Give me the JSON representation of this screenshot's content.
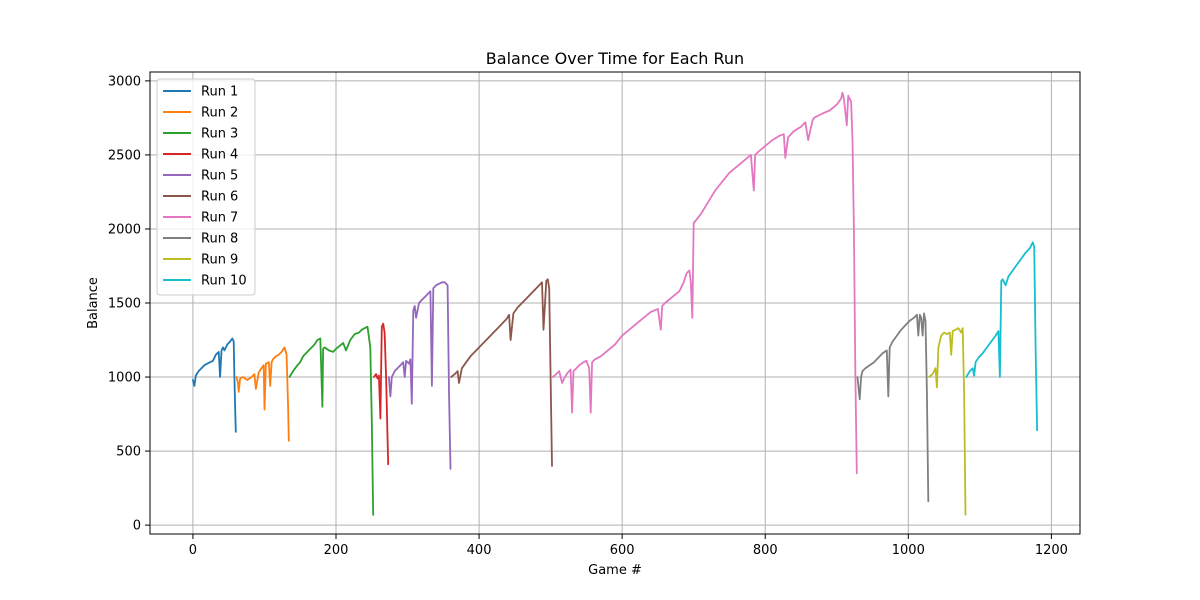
{
  "chart_data": {
    "type": "line",
    "title": "Balance Over Time for Each Run",
    "xlabel": "Game #",
    "ylabel": "Balance",
    "xlim": [
      -60,
      1240
    ],
    "ylim": [
      -60,
      3060
    ],
    "xticks": [
      0,
      200,
      400,
      600,
      800,
      1000,
      1200
    ],
    "yticks": [
      0,
      500,
      1000,
      1500,
      2000,
      2500,
      3000
    ],
    "grid": true,
    "legend_position": "upper-left",
    "series": [
      {
        "name": "Run 1",
        "color": "#1f77b4",
        "x": [
          0,
          2,
          4,
          8,
          12,
          16,
          20,
          24,
          28,
          32,
          36,
          38,
          40,
          42,
          44,
          48,
          52,
          55,
          57,
          58,
          59,
          60
        ],
        "y": [
          980,
          940,
          1010,
          1040,
          1060,
          1080,
          1090,
          1100,
          1110,
          1150,
          1170,
          1000,
          1180,
          1200,
          1180,
          1220,
          1240,
          1260,
          1240,
          1000,
          800,
          630
        ]
      },
      {
        "name": "Run 2",
        "color": "#ff7f0e",
        "x": [
          61,
          63,
          64,
          66,
          70,
          76,
          82,
          86,
          88,
          92,
          96,
          99,
          100,
          102,
          106,
          108,
          110,
          112,
          116,
          120,
          124,
          128,
          131,
          133,
          134
        ],
        "y": [
          1000,
          960,
          900,
          990,
          1000,
          980,
          1000,
          1020,
          920,
          1030,
          1060,
          1080,
          780,
          1090,
          1100,
          940,
          1100,
          1120,
          1140,
          1150,
          1170,
          1200,
          1150,
          800,
          570
        ]
      },
      {
        "name": "Run 3",
        "color": "#2ca02c",
        "x": [
          135,
          140,
          146,
          150,
          154,
          158,
          162,
          166,
          170,
          174,
          178,
          181,
          182,
          184,
          190,
          196,
          200,
          205,
          210,
          214,
          220,
          226,
          232,
          236,
          240,
          244,
          248,
          250,
          252
        ],
        "y": [
          1000,
          1040,
          1080,
          1100,
          1140,
          1160,
          1180,
          1200,
          1220,
          1250,
          1260,
          800,
          1190,
          1200,
          1180,
          1170,
          1190,
          1210,
          1230,
          1180,
          1250,
          1290,
          1300,
          1320,
          1330,
          1340,
          1200,
          700,
          70
        ]
      },
      {
        "name": "Run 4",
        "color": "#d62728",
        "x": [
          253,
          256,
          258,
          260,
          262,
          264,
          266,
          268,
          270,
          272,
          273
        ],
        "y": [
          1000,
          1020,
          990,
          1010,
          720,
          1340,
          1360,
          1300,
          1000,
          600,
          410
        ]
      },
      {
        "name": "Run 5",
        "color": "#9467bd",
        "x": [
          274,
          276,
          278,
          282,
          286,
          290,
          294,
          296,
          298,
          302,
          304,
          306,
          308,
          310,
          312,
          316,
          320,
          324,
          328,
          332,
          334,
          336,
          340,
          344,
          348,
          352,
          356,
          358,
          360
        ],
        "y": [
          1000,
          870,
          1000,
          1040,
          1060,
          1080,
          1100,
          1000,
          1110,
          1090,
          1120,
          820,
          1450,
          1480,
          1400,
          1500,
          1520,
          1540,
          1560,
          1580,
          940,
          1600,
          1620,
          1630,
          1640,
          1640,
          1620,
          900,
          380
        ]
      },
      {
        "name": "Run 6",
        "color": "#8c564b",
        "x": [
          361,
          366,
          370,
          372,
          376,
          382,
          388,
          394,
          400,
          408,
          414,
          420,
          426,
          432,
          438,
          442,
          444,
          448,
          454,
          460,
          466,
          472,
          478,
          484,
          488,
          490,
          494,
          496,
          498,
          500,
          502
        ],
        "y": [
          1000,
          1020,
          1040,
          960,
          1060,
          1100,
          1140,
          1170,
          1200,
          1240,
          1270,
          1300,
          1330,
          1360,
          1390,
          1420,
          1250,
          1430,
          1470,
          1500,
          1530,
          1560,
          1590,
          1620,
          1640,
          1320,
          1650,
          1660,
          1600,
          1000,
          400
        ]
      },
      {
        "name": "Run 7",
        "color": "#e377c2",
        "x": [
          503,
          508,
          512,
          516,
          520,
          524,
          528,
          530,
          532,
          536,
          540,
          546,
          550,
          554,
          556,
          558,
          562,
          570,
          580,
          590,
          600,
          610,
          620,
          630,
          640,
          650,
          654,
          656,
          660,
          670,
          680,
          686,
          690,
          694,
          696,
          698,
          700,
          710,
          720,
          730,
          740,
          750,
          760,
          770,
          780,
          784,
          786,
          790,
          800,
          810,
          820,
          826,
          828,
          832,
          840,
          850,
          856,
          860,
          866,
          868,
          872,
          880,
          890,
          900,
          906,
          908,
          910,
          914,
          916,
          918,
          920,
          922,
          924,
          926,
          928
        ],
        "y": [
          1000,
          1020,
          1040,
          960,
          1000,
          1030,
          1050,
          760,
          1040,
          1060,
          1080,
          1100,
          1110,
          1060,
          760,
          1100,
          1120,
          1140,
          1180,
          1220,
          1280,
          1320,
          1360,
          1400,
          1440,
          1460,
          1320,
          1480,
          1500,
          1540,
          1580,
          1640,
          1700,
          1720,
          1640,
          1400,
          2040,
          2100,
          2180,
          2260,
          2320,
          2380,
          2420,
          2460,
          2500,
          2260,
          2500,
          2520,
          2560,
          2600,
          2630,
          2640,
          2480,
          2620,
          2660,
          2690,
          2720,
          2600,
          2730,
          2750,
          2760,
          2780,
          2800,
          2840,
          2880,
          2920,
          2880,
          2700,
          2900,
          2880,
          2860,
          2600,
          2000,
          1000,
          350
        ]
      },
      {
        "name": "Run 8",
        "color": "#7f7f7f",
        "x": [
          929,
          932,
          934,
          936,
          940,
          946,
          952,
          958,
          964,
          970,
          972,
          974,
          978,
          984,
          990,
          996,
          1002,
          1008,
          1012,
          1014,
          1016,
          1018,
          1020,
          1022,
          1024,
          1026,
          1028
        ],
        "y": [
          1000,
          850,
          1000,
          1040,
          1060,
          1080,
          1100,
          1130,
          1160,
          1180,
          870,
          1200,
          1240,
          1280,
          1320,
          1350,
          1380,
          1400,
          1420,
          1280,
          1420,
          1400,
          1280,
          1430,
          1380,
          900,
          160
        ]
      },
      {
        "name": "Run 9",
        "color": "#bcbd22",
        "x": [
          1029,
          1034,
          1038,
          1040,
          1042,
          1046,
          1050,
          1054,
          1058,
          1060,
          1062,
          1066,
          1070,
          1074,
          1076,
          1078,
          1080
        ],
        "y": [
          1000,
          1020,
          1060,
          930,
          1200,
          1280,
          1300,
          1290,
          1300,
          1150,
          1310,
          1320,
          1330,
          1300,
          1330,
          900,
          70
        ]
      },
      {
        "name": "Run 10",
        "color": "#17becf",
        "x": [
          1081,
          1086,
          1090,
          1092,
          1094,
          1098,
          1104,
          1110,
          1116,
          1122,
          1126,
          1128,
          1130,
          1132,
          1136,
          1140,
          1146,
          1152,
          1158,
          1164,
          1170,
          1174,
          1176,
          1178,
          1180
        ],
        "y": [
          1000,
          1040,
          1060,
          1010,
          1100,
          1130,
          1160,
          1200,
          1240,
          1280,
          1310,
          1000,
          1650,
          1660,
          1620,
          1680,
          1720,
          1760,
          1800,
          1840,
          1870,
          1910,
          1880,
          1200,
          640
        ]
      }
    ]
  }
}
